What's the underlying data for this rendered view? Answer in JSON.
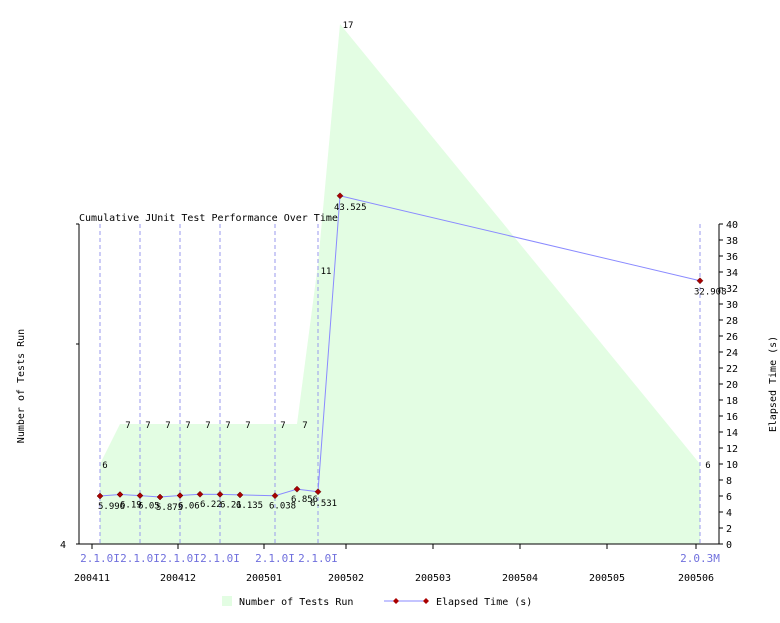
{
  "chart_data": {
    "type": "line",
    "title": "Cumulative JUnit Test Performance Over Time",
    "left_axis": {
      "label": "Number of Tests Run",
      "tick_labels": [
        "4"
      ]
    },
    "right_axis": {
      "label": "Elapsed Time (s)",
      "ylim": [
        0,
        40
      ],
      "ticks": [
        0,
        2,
        4,
        6,
        8,
        10,
        12,
        14,
        16,
        18,
        20,
        22,
        24,
        26,
        28,
        30,
        32,
        34,
        36,
        38,
        40
      ]
    },
    "month_labels": [
      "200411",
      "200412",
      "200501",
      "200502",
      "200503",
      "200504",
      "200505",
      "200506"
    ],
    "build_labels": [
      "2.1.0I",
      "2.1.0I",
      "2.1.0I",
      "2.1.0I",
      "2.1.0I",
      "2.1.0I",
      "2.0.3M"
    ],
    "series": [
      {
        "name": "Number of Tests Run",
        "kind": "area",
        "color": "#e3fde3",
        "values": [
          6,
          7,
          7,
          7,
          7,
          7,
          7,
          7,
          7,
          7,
          11,
          17,
          6
        ],
        "labels": [
          "6",
          "7",
          "7",
          "7",
          "7",
          "7",
          "7",
          "7",
          "7",
          "7",
          "11",
          "17",
          "6"
        ]
      },
      {
        "name": "Elapsed Time (s)",
        "kind": "line",
        "color": "#8a8aff",
        "marker_color": "#aa0000",
        "values": [
          5.996,
          6.19,
          6.05,
          5.873,
          6.06,
          6.22,
          6.21,
          6.135,
          6.038,
          6.856,
          6.531,
          43.525,
          32.908
        ],
        "labels": [
          "5.996",
          "6.19",
          "6.05",
          "5.873",
          "6.06",
          "6.22",
          "6.21",
          "6.135",
          "6.038",
          "6.856",
          "6.531",
          "43.525",
          "32.908"
        ]
      }
    ],
    "legend": {
      "placement": "bottom",
      "area_label": "Number of Tests Run",
      "line_label": "Elapsed Time (s)"
    }
  }
}
